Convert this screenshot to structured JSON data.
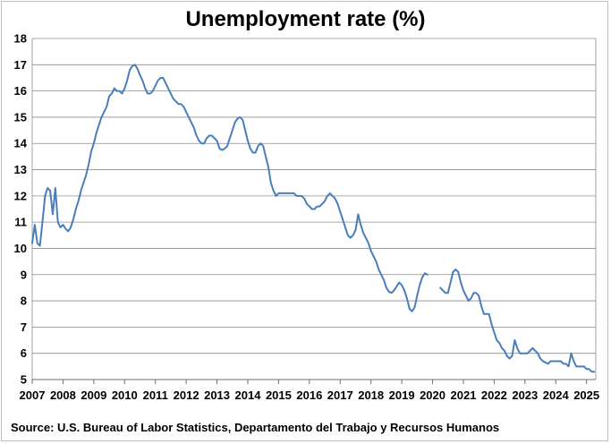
{
  "chart_data": {
    "type": "line",
    "title": "Unemployment rate (%)",
    "source": "Source: U.S. Bureau of Labor Statistics, Departamento del Trabajo y Recursos Humanos",
    "xlabel": "",
    "ylabel": "",
    "ylim": [
      5,
      18
    ],
    "xlim": [
      2007,
      2025.3
    ],
    "y_ticks": [
      "5",
      "6",
      "7",
      "8",
      "9",
      "10",
      "11",
      "12",
      "13",
      "14",
      "15",
      "16",
      "17",
      "18"
    ],
    "x_ticks": [
      "2007",
      "2008",
      "2009",
      "2010",
      "2011",
      "2012",
      "2013",
      "2014",
      "2015",
      "2016",
      "2017",
      "2018",
      "2019",
      "2020",
      "2021",
      "2022",
      "2023",
      "2024",
      "2025"
    ],
    "grid": "horizontal",
    "line_color": "#4a7ebb",
    "series": [
      {
        "segments": [
          [
            [
              2007.0,
              10.2
            ],
            [
              2007.083,
              10.9
            ],
            [
              2007.167,
              10.2
            ],
            [
              2007.25,
              10.1
            ],
            [
              2007.333,
              11.0
            ],
            [
              2007.417,
              12.0
            ],
            [
              2007.5,
              12.3
            ],
            [
              2007.583,
              12.2
            ],
            [
              2007.667,
              11.3
            ],
            [
              2007.75,
              12.3
            ],
            [
              2007.833,
              11.0
            ],
            [
              2007.917,
              10.8
            ],
            [
              2008.0,
              10.9
            ],
            [
              2008.083,
              10.75
            ],
            [
              2008.167,
              10.65
            ],
            [
              2008.25,
              10.8
            ],
            [
              2008.333,
              11.1
            ],
            [
              2008.417,
              11.5
            ],
            [
              2008.5,
              11.8
            ],
            [
              2008.583,
              12.2
            ],
            [
              2008.667,
              12.5
            ],
            [
              2008.75,
              12.8
            ],
            [
              2008.833,
              13.2
            ],
            [
              2008.917,
              13.7
            ],
            [
              2009.0,
              14.0
            ],
            [
              2009.083,
              14.4
            ],
            [
              2009.167,
              14.7
            ],
            [
              2009.25,
              15.0
            ],
            [
              2009.333,
              15.2
            ],
            [
              2009.417,
              15.4
            ],
            [
              2009.5,
              15.8
            ],
            [
              2009.583,
              15.9
            ],
            [
              2009.667,
              16.1
            ],
            [
              2009.75,
              16.0
            ],
            [
              2009.833,
              16.0
            ],
            [
              2009.917,
              15.9
            ],
            [
              2010.0,
              16.1
            ],
            [
              2010.083,
              16.4
            ],
            [
              2010.167,
              16.8
            ],
            [
              2010.25,
              16.95
            ],
            [
              2010.333,
              17.0
            ],
            [
              2010.417,
              16.85
            ],
            [
              2010.5,
              16.6
            ],
            [
              2010.583,
              16.4
            ],
            [
              2010.667,
              16.1
            ],
            [
              2010.75,
              15.9
            ],
            [
              2010.833,
              15.9
            ],
            [
              2010.917,
              16.0
            ],
            [
              2011.0,
              16.2
            ],
            [
              2011.083,
              16.4
            ],
            [
              2011.167,
              16.5
            ],
            [
              2011.25,
              16.5
            ],
            [
              2011.333,
              16.3
            ],
            [
              2011.417,
              16.1
            ],
            [
              2011.5,
              15.9
            ],
            [
              2011.583,
              15.7
            ],
            [
              2011.667,
              15.6
            ],
            [
              2011.75,
              15.5
            ],
            [
              2011.833,
              15.5
            ],
            [
              2011.917,
              15.4
            ],
            [
              2012.0,
              15.2
            ],
            [
              2012.083,
              15.0
            ],
            [
              2012.167,
              14.8
            ],
            [
              2012.25,
              14.6
            ],
            [
              2012.333,
              14.3
            ],
            [
              2012.417,
              14.1
            ],
            [
              2012.5,
              14.0
            ],
            [
              2012.583,
              14.0
            ],
            [
              2012.667,
              14.2
            ],
            [
              2012.75,
              14.3
            ],
            [
              2012.833,
              14.3
            ],
            [
              2012.917,
              14.2
            ],
            [
              2013.0,
              14.1
            ],
            [
              2013.083,
              13.8
            ],
            [
              2013.167,
              13.75
            ],
            [
              2013.25,
              13.8
            ],
            [
              2013.333,
              13.9
            ],
            [
              2013.417,
              14.2
            ],
            [
              2013.5,
              14.5
            ],
            [
              2013.583,
              14.8
            ],
            [
              2013.667,
              14.95
            ],
            [
              2013.75,
              15.0
            ],
            [
              2013.833,
              14.9
            ],
            [
              2013.917,
              14.5
            ],
            [
              2014.0,
              14.1
            ],
            [
              2014.083,
              13.8
            ],
            [
              2014.167,
              13.65
            ],
            [
              2014.25,
              13.65
            ],
            [
              2014.333,
              13.9
            ],
            [
              2014.417,
              14.0
            ],
            [
              2014.5,
              13.9
            ],
            [
              2014.583,
              13.5
            ],
            [
              2014.667,
              13.1
            ],
            [
              2014.75,
              12.5
            ],
            [
              2014.833,
              12.2
            ],
            [
              2014.917,
              12.0
            ],
            [
              2015.0,
              12.1
            ],
            [
              2015.083,
              12.1
            ],
            [
              2015.167,
              12.1
            ],
            [
              2015.25,
              12.1
            ],
            [
              2015.333,
              12.1
            ],
            [
              2015.417,
              12.1
            ],
            [
              2015.5,
              12.1
            ],
            [
              2015.583,
              12.0
            ],
            [
              2015.667,
              12.0
            ],
            [
              2015.75,
              12.0
            ],
            [
              2015.833,
              11.9
            ],
            [
              2015.917,
              11.7
            ],
            [
              2016.0,
              11.6
            ],
            [
              2016.083,
              11.5
            ],
            [
              2016.167,
              11.5
            ],
            [
              2016.25,
              11.6
            ],
            [
              2016.333,
              11.6
            ],
            [
              2016.417,
              11.7
            ],
            [
              2016.5,
              11.8
            ],
            [
              2016.583,
              12.0
            ],
            [
              2016.667,
              12.1
            ],
            [
              2016.75,
              12.0
            ],
            [
              2016.833,
              11.9
            ],
            [
              2016.917,
              11.7
            ],
            [
              2017.0,
              11.4
            ],
            [
              2017.083,
              11.1
            ],
            [
              2017.167,
              10.8
            ],
            [
              2017.25,
              10.5
            ],
            [
              2017.333,
              10.4
            ],
            [
              2017.417,
              10.5
            ],
            [
              2017.5,
              10.7
            ],
            [
              2017.583,
              11.3
            ],
            [
              2017.667,
              10.9
            ],
            [
              2017.75,
              10.6
            ],
            [
              2017.833,
              10.4
            ],
            [
              2017.917,
              10.2
            ],
            [
              2018.0,
              9.9
            ],
            [
              2018.083,
              9.7
            ],
            [
              2018.167,
              9.5
            ],
            [
              2018.25,
              9.2
            ],
            [
              2018.333,
              9.0
            ],
            [
              2018.417,
              8.8
            ],
            [
              2018.5,
              8.5
            ],
            [
              2018.583,
              8.35
            ],
            [
              2018.667,
              8.3
            ],
            [
              2018.75,
              8.4
            ],
            [
              2018.833,
              8.55
            ],
            [
              2018.917,
              8.7
            ],
            [
              2019.0,
              8.6
            ],
            [
              2019.083,
              8.4
            ],
            [
              2019.167,
              8.1
            ],
            [
              2019.25,
              7.7
            ],
            [
              2019.333,
              7.6
            ],
            [
              2019.417,
              7.75
            ],
            [
              2019.5,
              8.2
            ],
            [
              2019.583,
              8.6
            ],
            [
              2019.667,
              8.9
            ],
            [
              2019.75,
              9.05
            ],
            [
              2019.833,
              9.0
            ]
          ],
          [
            [
              2020.25,
              8.5
            ],
            [
              2020.333,
              8.4
            ],
            [
              2020.417,
              8.3
            ],
            [
              2020.5,
              8.3
            ],
            [
              2020.583,
              8.7
            ],
            [
              2020.667,
              9.1
            ],
            [
              2020.75,
              9.2
            ],
            [
              2020.833,
              9.1
            ],
            [
              2020.917,
              8.7
            ],
            [
              2021.0,
              8.4
            ],
            [
              2021.083,
              8.2
            ],
            [
              2021.167,
              8.0
            ],
            [
              2021.25,
              8.1
            ],
            [
              2021.333,
              8.3
            ],
            [
              2021.417,
              8.3
            ],
            [
              2021.5,
              8.2
            ],
            [
              2021.583,
              7.8
            ],
            [
              2021.667,
              7.5
            ],
            [
              2021.75,
              7.5
            ],
            [
              2021.833,
              7.5
            ],
            [
              2021.917,
              7.1
            ],
            [
              2022.0,
              6.8
            ],
            [
              2022.083,
              6.5
            ],
            [
              2022.167,
              6.4
            ],
            [
              2022.25,
              6.2
            ],
            [
              2022.333,
              6.1
            ],
            [
              2022.417,
              5.9
            ],
            [
              2022.5,
              5.8
            ],
            [
              2022.583,
              5.9
            ],
            [
              2022.667,
              6.5
            ],
            [
              2022.75,
              6.2
            ],
            [
              2022.833,
              6.0
            ],
            [
              2022.917,
              6.0
            ],
            [
              2023.0,
              6.0
            ],
            [
              2023.083,
              6.0
            ],
            [
              2023.167,
              6.1
            ],
            [
              2023.25,
              6.2
            ],
            [
              2023.333,
              6.1
            ],
            [
              2023.417,
              6.0
            ],
            [
              2023.5,
              5.8
            ],
            [
              2023.583,
              5.7
            ],
            [
              2023.667,
              5.65
            ],
            [
              2023.75,
              5.6
            ],
            [
              2023.833,
              5.7
            ],
            [
              2023.917,
              5.7
            ],
            [
              2024.0,
              5.7
            ],
            [
              2024.083,
              5.7
            ],
            [
              2024.167,
              5.7
            ],
            [
              2024.25,
              5.6
            ],
            [
              2024.333,
              5.6
            ],
            [
              2024.417,
              5.5
            ],
            [
              2024.5,
              6.0
            ],
            [
              2024.583,
              5.7
            ],
            [
              2024.667,
              5.5
            ],
            [
              2024.75,
              5.5
            ],
            [
              2024.833,
              5.5
            ],
            [
              2024.917,
              5.5
            ],
            [
              2025.0,
              5.4
            ],
            [
              2025.083,
              5.4
            ],
            [
              2025.167,
              5.3
            ],
            [
              2025.25,
              5.3
            ]
          ]
        ]
      }
    ]
  }
}
